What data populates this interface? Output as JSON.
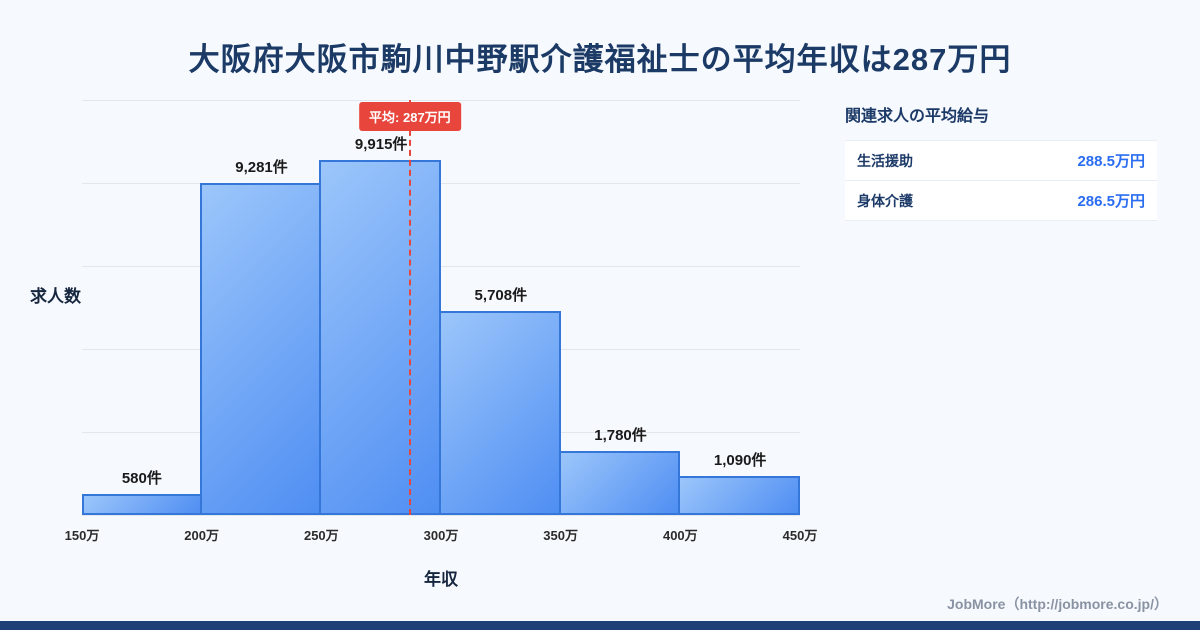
{
  "page": {
    "title": "大阪府大阪市駒川中野駅介護福祉士の平均年収は287万円",
    "footer_credit": "JobMore（http://jobmore.co.jp/）"
  },
  "chart_data": {
    "type": "bar",
    "title": "大阪府大阪市駒川中野駅介護福祉士の平均年収は287万円",
    "xlabel": "年収",
    "ylabel": "求人数",
    "bin_edge_labels": [
      "150万",
      "200万",
      "250万",
      "300万",
      "350万",
      "400万",
      "450万"
    ],
    "bin_edges_value": [
      150,
      200,
      250,
      300,
      350,
      400,
      450
    ],
    "values": [
      580,
      9281,
      9915,
      5708,
      1780,
      1090
    ],
    "bar_labels": [
      "580件",
      "9,281件",
      "9,915件",
      "5,708件",
      "1,780件",
      "1,090件"
    ],
    "ylim": [
      0,
      11600
    ],
    "grid": true,
    "gridline_count": 6,
    "legend": "none",
    "average": {
      "value": 287,
      "label": "平均: 287万円",
      "x_min": 150,
      "x_max": 450
    },
    "colors": {
      "bar_fill_top": "#9cc6fb",
      "bar_fill_bottom": "#4f8ef2",
      "bar_border": "#3577d8",
      "average_line": "#e8463c",
      "title_text": "#1b3a66",
      "page_background": "#f6f9fd",
      "bottom_bar": "#1e4076"
    }
  },
  "side_panel": {
    "heading": "関連求人の平均給与",
    "rows": [
      {
        "label": "生活援助",
        "value": "288.5万円"
      },
      {
        "label": "身体介護",
        "value": "286.5万円"
      }
    ]
  }
}
